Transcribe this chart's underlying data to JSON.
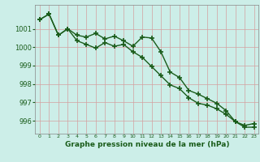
{
  "line1": [
    1001.5,
    1001.8,
    1000.65,
    1001.0,
    1000.65,
    1000.55,
    1000.75,
    1000.45,
    1000.6,
    1000.35,
    1000.05,
    1000.55,
    1000.5,
    999.75,
    998.65,
    998.35,
    997.65,
    997.45,
    997.2,
    996.95,
    996.55,
    995.95,
    995.75,
    995.85
  ],
  "line2": [
    1001.5,
    1001.8,
    1000.65,
    1001.0,
    1000.35,
    1000.15,
    999.95,
    1000.25,
    1000.05,
    1000.15,
    999.75,
    999.45,
    998.95,
    998.45,
    997.95,
    997.75,
    997.25,
    996.95,
    996.85,
    996.65,
    996.35,
    995.95,
    995.65,
    995.65
  ],
  "hours": [
    0,
    1,
    2,
    3,
    4,
    5,
    6,
    7,
    8,
    9,
    10,
    11,
    12,
    13,
    14,
    15,
    16,
    17,
    18,
    19,
    20,
    21,
    22,
    23
  ],
  "ylim": [
    995.3,
    1002.3
  ],
  "yticks": [
    996,
    997,
    998,
    999,
    1000,
    1001
  ],
  "xtick_labels": [
    "0",
    "1",
    "2",
    "3",
    "4",
    "5",
    "6",
    "7",
    "8",
    "9",
    "10",
    "11",
    "12",
    "13",
    "14",
    "15",
    "16",
    "17",
    "18",
    "19",
    "20",
    "21",
    "22",
    "23"
  ],
  "line_color": "#1a5c1a",
  "bg_color": "#cceee8",
  "grid_color": "#d4a0a0",
  "xlabel": "Graphe pression niveau de la mer (hPa)",
  "marker": "+",
  "linewidth": 1.0,
  "markersize": 4,
  "markeredgewidth": 1.2
}
